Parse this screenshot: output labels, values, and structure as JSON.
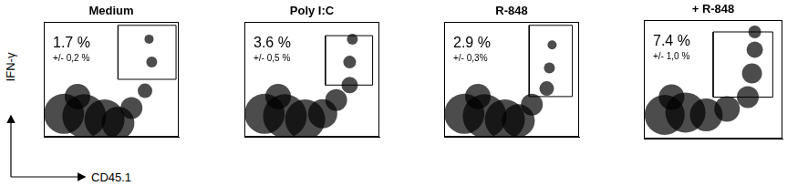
{
  "axes": {
    "y_label": "IFN-γ",
    "x_label": "CD45.1"
  },
  "chart_data": [
    {
      "type": "bubble",
      "title": "Medium",
      "color": "#000000",
      "xlim": [
        0,
        100
      ],
      "ylim": [
        0,
        100
      ],
      "tick_labels": false,
      "grid": false,
      "x": [
        15,
        30,
        45,
        55,
        25,
        65,
        75,
        80,
        78
      ],
      "values": [
        20,
        18,
        15,
        12,
        35,
        25,
        40,
        65,
        85
      ],
      "sizes": [
        22,
        24,
        22,
        18,
        14,
        12,
        8,
        6,
        5
      ],
      "gate": {
        "x": [
          55,
          98
        ],
        "y": [
          50,
          97
        ]
      },
      "annotations": [
        "1.7 %",
        "+/- 0,2 %"
      ]
    },
    {
      "type": "bubble",
      "title": "Poly I:C",
      "color": "#000000",
      "xlim": [
        0,
        100
      ],
      "ylim": [
        0,
        100
      ],
      "tick_labels": false,
      "grid": false,
      "x": [
        15,
        30,
        45,
        58,
        25,
        68,
        78,
        78,
        80
      ],
      "values": [
        20,
        18,
        15,
        20,
        35,
        32,
        45,
        65,
        85
      ],
      "sizes": [
        22,
        24,
        22,
        16,
        14,
        12,
        9,
        7,
        6
      ],
      "gate": {
        "x": [
          60,
          95
        ],
        "y": [
          45,
          88
        ]
      },
      "annotations": [
        "3.6 %",
        "+/- 0,5 %"
      ]
    },
    {
      "type": "bubble",
      "title": "R-848",
      "color": "#000000",
      "xlim": [
        0,
        100
      ],
      "ylim": [
        0,
        100
      ],
      "tick_labels": false,
      "grid": false,
      "x": [
        15,
        30,
        45,
        55,
        25,
        65,
        76,
        78,
        80
      ],
      "values": [
        20,
        18,
        15,
        14,
        35,
        28,
        42,
        60,
        80
      ],
      "sizes": [
        22,
        24,
        22,
        18,
        14,
        12,
        8,
        6,
        5
      ],
      "gate": {
        "x": [
          63,
          95
        ],
        "y": [
          35,
          97
        ]
      },
      "annotations": [
        "2.9 %",
        "+/- 0,3%"
      ]
    },
    {
      "type": "bubble",
      "title": "+ R-848",
      "color": "#000000",
      "xlim": [
        0,
        100
      ],
      "ylim": [
        0,
        100
      ],
      "tick_labels": false,
      "grid": false,
      "x": [
        15,
        30,
        45,
        20,
        60,
        75,
        78,
        80,
        80
      ],
      "values": [
        20,
        22,
        20,
        35,
        25,
        35,
        55,
        75,
        90
      ],
      "sizes": [
        22,
        22,
        18,
        14,
        14,
        12,
        11,
        9,
        7
      ],
      "gate": {
        "x": [
          50,
          93
        ],
        "y": [
          35,
          90
        ]
      },
      "annotations": [
        "7.4 %",
        "+/- 1,0 %"
      ]
    }
  ]
}
